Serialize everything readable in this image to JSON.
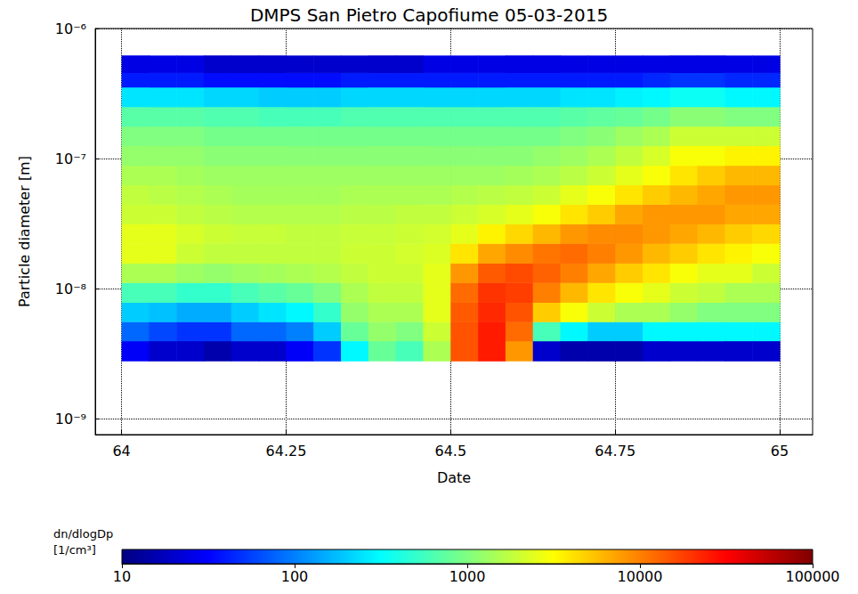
{
  "chart_data": {
    "type": "heatmap",
    "title": "DMPS San Pietro Capofiume 05-03-2015",
    "x_label": "Date",
    "y_label": "Particle diameter [m]",
    "log": "y",
    "grid": true,
    "color": "jet",
    "xlim": [
      63.96,
      65.05
    ],
    "xticks": [
      64,
      64.25,
      64.5,
      64.75,
      65
    ],
    "ylim": [
      7.6e-10,
      1e-06
    ],
    "yticks": [
      {
        "value": 1e-09,
        "label": "10⁻⁹"
      },
      {
        "value": 1e-08,
        "label": "10⁻⁸"
      },
      {
        "value": 1e-07,
        "label": "10⁻⁷"
      },
      {
        "value": 1e-06,
        "label": "10⁻⁶"
      }
    ],
    "x_edges": [
      64,
      64.0417,
      64.0833,
      64.125,
      64.1667,
      64.2083,
      64.25,
      64.2917,
      64.3333,
      64.375,
      64.4167,
      64.4583,
      64.5,
      64.5417,
      64.5833,
      64.625,
      64.6667,
      64.7083,
      64.75,
      64.7917,
      64.8333,
      64.875,
      64.9167,
      64.9583,
      65
    ],
    "y_edges": [
      2.8e-09,
      4e-09,
      5.6e-09,
      7.9e-09,
      1.12e-08,
      1.58e-08,
      2.24e-08,
      3.16e-08,
      4.47e-08,
      6.3e-08,
      8.9e-08,
      1.26e-07,
      1.78e-07,
      2.51e-07,
      3.55e-07,
      4.6e-07,
      6.2e-07
    ],
    "cells": [
      [
        30,
        80,
        200,
        600,
        1500,
        2500,
        2500,
        2000,
        1800,
        1500,
        1200,
        1000,
        700,
        250,
        40,
        25
      ],
      [
        20,
        60,
        180,
        600,
        1500,
        2500,
        2500,
        2000,
        1700,
        1500,
        1200,
        1000,
        700,
        250,
        40,
        25
      ],
      [
        20,
        50,
        150,
        500,
        1300,
        2000,
        2200,
        1800,
        1600,
        1400,
        1200,
        1000,
        700,
        250,
        40,
        25
      ],
      [
        15,
        50,
        150,
        500,
        1200,
        1800,
        2000,
        1700,
        1500,
        1300,
        1100,
        900,
        650,
        220,
        35,
        20
      ],
      [
        20,
        80,
        200,
        600,
        1300,
        1800,
        1900,
        1600,
        1400,
        1300,
        1100,
        900,
        650,
        220,
        35,
        20
      ],
      [
        20,
        80,
        250,
        700,
        1400,
        1800,
        1900,
        1600,
        1400,
        1300,
        1100,
        900,
        600,
        200,
        35,
        20
      ],
      [
        30,
        100,
        300,
        800,
        1500,
        1800,
        1800,
        1600,
        1400,
        1300,
        1100,
        900,
        600,
        200,
        35,
        20
      ],
      [
        50,
        200,
        500,
        1000,
        1600,
        1800,
        1800,
        1600,
        1400,
        1300,
        1100,
        900,
        600,
        200,
        35,
        20
      ],
      [
        300,
        800,
        1200,
        1500,
        1800,
        2000,
        1900,
        1700,
        1500,
        1300,
        1100,
        900,
        650,
        220,
        40,
        20
      ],
      [
        800,
        1200,
        1500,
        1800,
        2000,
        2000,
        1900,
        1700,
        1500,
        1300,
        1100,
        900,
        650,
        220,
        40,
        20
      ],
      [
        600,
        1000,
        1500,
        1800,
        2000,
        2100,
        2000,
        1800,
        1500,
        1300,
        1100,
        900,
        650,
        220,
        40,
        20
      ],
      [
        1500,
        2000,
        2500,
        2500,
        2500,
        2300,
        2100,
        1800,
        1500,
        1300,
        1100,
        900,
        650,
        220,
        40,
        25
      ],
      [
        15000,
        15000,
        14000,
        12000,
        8000,
        4000,
        2500,
        2000,
        1600,
        1300,
        1100,
        900,
        650,
        220,
        40,
        25
      ],
      [
        25000,
        25000,
        22000,
        20000,
        14000,
        7000,
        3500,
        2200,
        1700,
        1300,
        1100,
        900,
        650,
        220,
        40,
        25
      ],
      [
        8000,
        12000,
        15000,
        18000,
        16000,
        9000,
        4500,
        2500,
        1800,
        1400,
        1100,
        900,
        650,
        220,
        40,
        25
      ],
      [
        20,
        600,
        5000,
        10000,
        13000,
        11000,
        6000,
        3000,
        2000,
        1500,
        1200,
        900,
        650,
        220,
        40,
        25
      ],
      [
        15,
        300,
        3000,
        6000,
        10000,
        12000,
        8000,
        4000,
        2500,
        1700,
        1300,
        1000,
        700,
        250,
        40,
        25
      ],
      [
        15,
        200,
        2000,
        4000,
        7000,
        10000,
        9000,
        5000,
        3000,
        2000,
        1500,
        1100,
        750,
        250,
        40,
        25
      ],
      [
        15,
        200,
        1500,
        3000,
        5000,
        8000,
        9000,
        7000,
        4000,
        2500,
        1800,
        1300,
        800,
        280,
        40,
        25
      ],
      [
        20,
        300,
        1500,
        2500,
        4000,
        6000,
        8000,
        8000,
        5000,
        3000,
        2200,
        1500,
        900,
        300,
        45,
        25
      ],
      [
        20,
        300,
        1200,
        2000,
        3000,
        5000,
        7000,
        8000,
        6000,
        4000,
        3000,
        2000,
        1100,
        350,
        50,
        25
      ],
      [
        20,
        300,
        1000,
        1800,
        2500,
        4000,
        6000,
        8000,
        7000,
        5000,
        3000,
        2000,
        1100,
        350,
        50,
        25
      ],
      [
        20,
        300,
        1000,
        1500,
        2500,
        3500,
        5000,
        7000,
        8000,
        6000,
        3500,
        2000,
        1000,
        300,
        45,
        25
      ],
      [
        20,
        300,
        1000,
        1500,
        2000,
        3000,
        4500,
        7000,
        8000,
        6000,
        3500,
        2000,
        1000,
        300,
        45,
        25
      ]
    ],
    "colorbar": {
      "label": "dn/dlogDp [1/cm³]",
      "log": true,
      "range": [
        10,
        100000
      ],
      "ticks": [
        10,
        100,
        1000,
        10000,
        100000
      ]
    }
  }
}
